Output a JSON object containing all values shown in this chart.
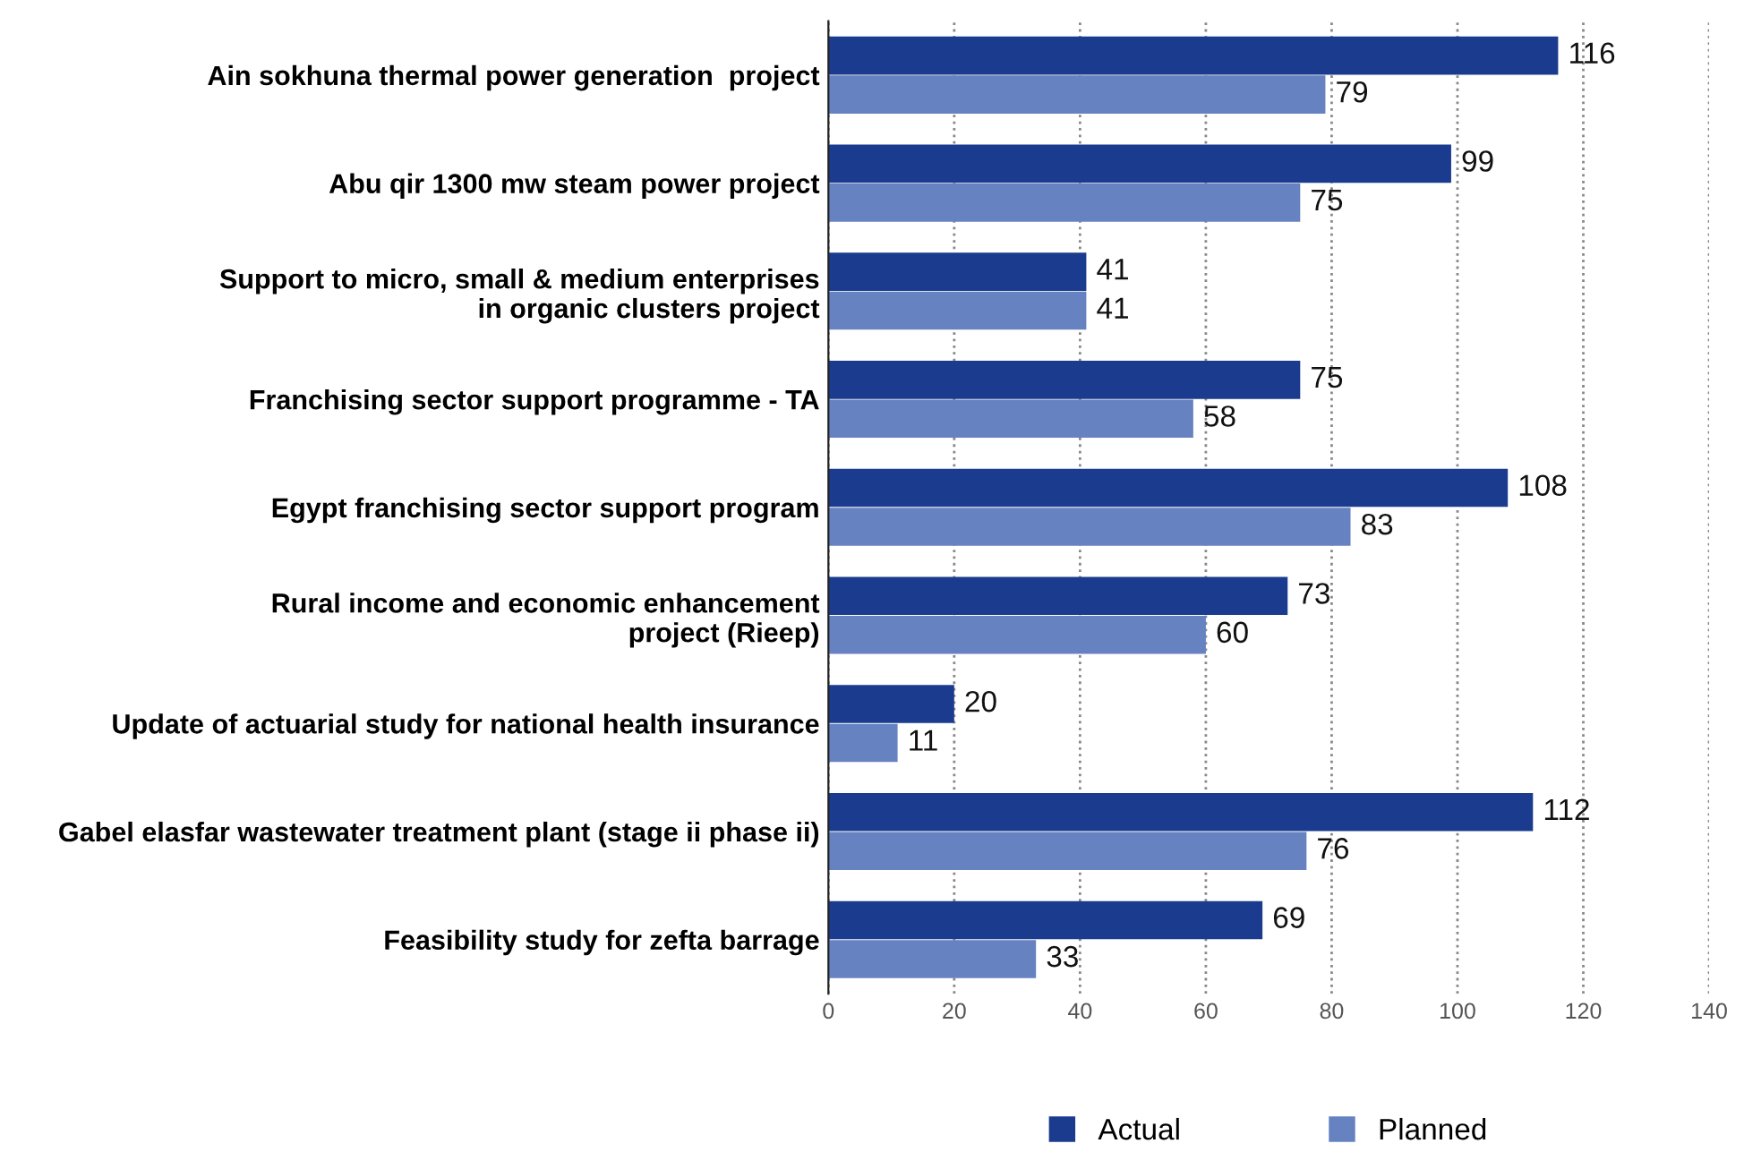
{
  "chart_data": {
    "type": "bar",
    "orientation": "horizontal",
    "categories": [
      "Ain sokhuna thermal power generation  project",
      "Abu qir 1300 mw steam power project",
      "Support to micro, small & medium enterprises\nin organic clusters project",
      "Franchising sector support programme - TA",
      "Egypt franchising sector support program",
      "Rural income and economic enhancement\nproject (Rieep)",
      "Update of actuarial study for national health insurance",
      "Gabel elasfar wastewater treatment plant (stage ii phase ii)",
      "Feasibility study for zefta barrage"
    ],
    "series": [
      {
        "name": "Actual",
        "color": "#1b3c8e",
        "values": [
          116,
          99,
          41,
          75,
          108,
          73,
          20,
          112,
          69
        ]
      },
      {
        "name": "Planned",
        "color": "#6682c0",
        "values": [
          79,
          75,
          41,
          58,
          83,
          60,
          11,
          76,
          33
        ]
      }
    ],
    "xlim": [
      0,
      140
    ],
    "xticks": [
      0,
      20,
      40,
      60,
      80,
      100,
      120,
      140
    ],
    "grid": "x",
    "legend": "bottom",
    "data_labels": true
  }
}
